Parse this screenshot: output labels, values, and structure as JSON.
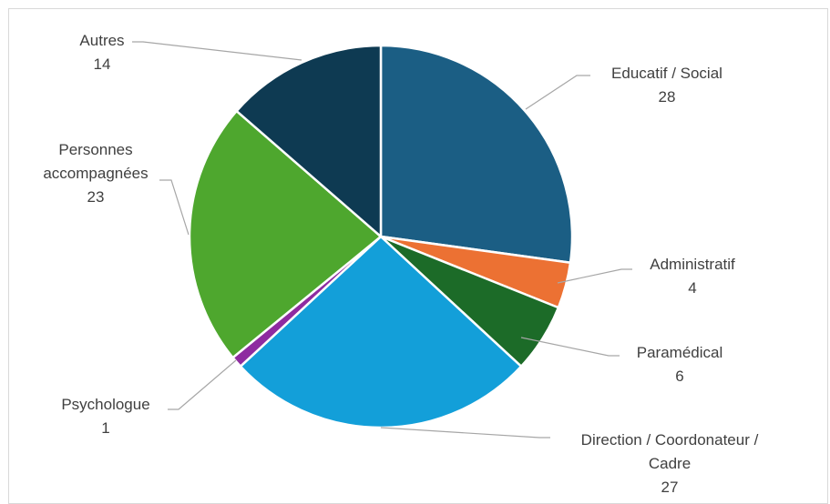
{
  "chart_data": {
    "type": "pie",
    "slices": [
      {
        "label": "Educatif / Social",
        "value": 28,
        "value_label": "28",
        "color": "#1b5e84"
      },
      {
        "label": "Administratif",
        "value": 4,
        "value_label": "4",
        "color": "#ec7133"
      },
      {
        "label": "Paramédical",
        "value": 6,
        "value_label": "6",
        "color": "#1c6b28"
      },
      {
        "label": "Direction / Coordonateur / Cadre",
        "value": 27,
        "value_label": "27",
        "color": "#139fd9"
      },
      {
        "label": "Psychologue",
        "value": 1,
        "value_label": "1",
        "color": "#8e2ba0"
      },
      {
        "label": "Personnes accompagnées",
        "value": 23,
        "value_label": "23",
        "color": "#4ea72e"
      },
      {
        "label": "Autres",
        "value": 14,
        "value_label": "14",
        "color": "#0e3a52"
      }
    ],
    "legend": "none",
    "data_labels": "outside with leader lines"
  }
}
